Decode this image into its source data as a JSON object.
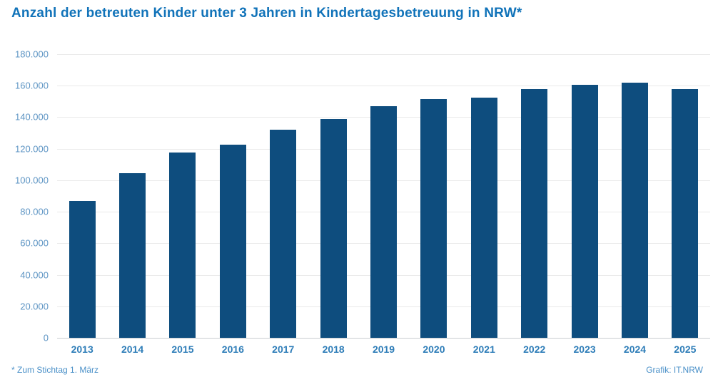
{
  "title": "Anzahl der betreuten Kinder unter 3 Jahren in Kindertagesbetreuung in NRW*",
  "footnote": "* Zum Stichtag 1. März",
  "credit": "Grafik: IT.NRW",
  "colors": {
    "bar": "#0e4d7e",
    "title": "#1173b9",
    "y_tick": "#5e95c4",
    "year": "#2e7db8",
    "footnote": "#4a90c8",
    "gridline": "#eaeaea",
    "axis_line": "#c9ccd0"
  },
  "chart_data": {
    "type": "bar",
    "title": "Anzahl der betreuten Kinder unter 3 Jahren in Kindertagesbetreuung in NRW*",
    "categories": [
      "2013",
      "2014",
      "2015",
      "2016",
      "2017",
      "2018",
      "2019",
      "2020",
      "2021",
      "2022",
      "2023",
      "2024",
      "2025"
    ],
    "values": [
      87000,
      104500,
      117500,
      122500,
      132000,
      139000,
      147000,
      151500,
      152500,
      158000,
      160500,
      162000,
      158000
    ],
    "xlabel": "",
    "ylabel": "",
    "ylim": [
      0,
      180000
    ],
    "yticks": [
      0,
      20000,
      40000,
      60000,
      80000,
      100000,
      120000,
      140000,
      160000,
      180000
    ],
    "ytick_labels": [
      "0",
      "20.000",
      "40.000",
      "60.000",
      "80.000",
      "100.000",
      "120.000",
      "140.000",
      "160.000",
      "180.000"
    ],
    "grid": true,
    "legend": false,
    "annotations": [
      "* Zum Stichtag 1. März",
      "Grafik: IT.NRW"
    ]
  }
}
